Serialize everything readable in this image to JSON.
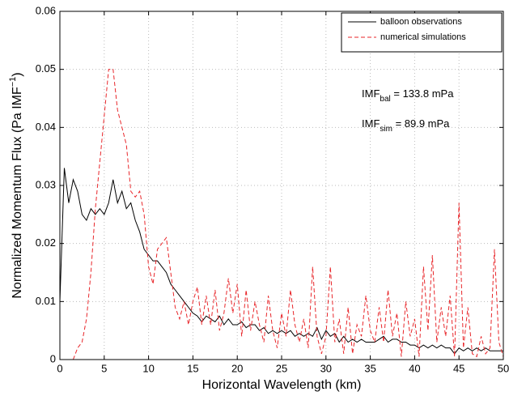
{
  "chart_data": {
    "type": "line",
    "xlabel": "Horizontal Wavelength (km)",
    "ylabel": {
      "text": "Normalized Momentum Flux (Pa IMF",
      "superscript": "−1",
      "suffix": ")"
    },
    "annotations": [
      {
        "text": "IMF",
        "subscript": "bal",
        "suffix": " = 133.8 mPa"
      },
      {
        "text": "IMF",
        "subscript": "sim",
        "suffix": " = 89.9 mPa"
      }
    ],
    "xlim": [
      0,
      50
    ],
    "xticks": [
      0,
      5,
      10,
      15,
      20,
      25,
      30,
      35,
      40,
      45,
      50
    ],
    "ylim": [
      0,
      0.06
    ],
    "yticks": [
      0,
      0.01,
      0.02,
      0.03,
      0.04,
      0.05,
      0.06
    ],
    "grid": true,
    "legend": "upper right",
    "x": [
      0,
      0.5,
      1,
      1.5,
      2,
      2.5,
      3,
      3.5,
      4,
      4.5,
      5,
      5.5,
      6,
      6.5,
      7,
      7.5,
      8,
      8.5,
      9,
      9.5,
      10,
      10.5,
      11,
      11.5,
      12,
      12.5,
      13,
      13.5,
      14,
      14.5,
      15,
      15.5,
      16,
      16.5,
      17,
      17.5,
      18,
      18.5,
      19,
      19.5,
      20,
      20.5,
      21,
      21.5,
      22,
      22.5,
      23,
      23.5,
      24,
      24.5,
      25,
      25.5,
      26,
      26.5,
      27,
      27.5,
      28,
      28.5,
      29,
      29.5,
      30,
      30.5,
      31,
      31.5,
      32,
      32.5,
      33,
      33.5,
      34,
      34.5,
      35,
      35.5,
      36,
      36.5,
      37,
      37.5,
      38,
      38.5,
      39,
      39.5,
      40,
      40.5,
      41,
      41.5,
      42,
      42.5,
      43,
      43.5,
      44,
      44.5,
      45,
      45.5,
      46,
      46.5,
      47,
      47.5,
      48,
      48.5,
      49,
      49.5,
      50
    ],
    "series": [
      {
        "name": "balloon observations",
        "color": "#000000",
        "dash": false,
        "values": [
          0.01,
          0.033,
          0.027,
          0.031,
          0.029,
          0.025,
          0.024,
          0.026,
          0.025,
          0.026,
          0.025,
          0.027,
          0.031,
          0.027,
          0.029,
          0.026,
          0.027,
          0.024,
          0.022,
          0.019,
          0.018,
          0.017,
          0.017,
          0.016,
          0.015,
          0.013,
          0.012,
          0.011,
          0.01,
          0.009,
          0.008,
          0.0075,
          0.0065,
          0.0075,
          0.007,
          0.0065,
          0.0075,
          0.006,
          0.007,
          0.006,
          0.006,
          0.0065,
          0.0055,
          0.006,
          0.006,
          0.005,
          0.0055,
          0.0045,
          0.005,
          0.0045,
          0.005,
          0.0045,
          0.005,
          0.004,
          0.0045,
          0.004,
          0.0045,
          0.004,
          0.0055,
          0.0035,
          0.005,
          0.004,
          0.0045,
          0.003,
          0.004,
          0.003,
          0.0035,
          0.003,
          0.0035,
          0.003,
          0.003,
          0.003,
          0.0035,
          0.004,
          0.003,
          0.0035,
          0.0035,
          0.003,
          0.003,
          0.0025,
          0.0025,
          0.002,
          0.0025,
          0.002,
          0.0025,
          0.002,
          0.0025,
          0.002,
          0.002,
          0.001,
          0.002,
          0.0015,
          0.002,
          0.0015,
          0.002,
          0.0015,
          0.002,
          0.0015,
          0.0015,
          0.0015,
          0.0015
        ]
      },
      {
        "name": "numerical simulations",
        "color": "#e8262a",
        "dash": true,
        "values": [
          null,
          null,
          null,
          0,
          0.002,
          0.003,
          0.007,
          0.015,
          0.026,
          0.034,
          0.042,
          0.05,
          0.05,
          0.043,
          0.04,
          0.037,
          0.029,
          0.028,
          0.029,
          0.025,
          0.016,
          0.013,
          0.019,
          0.02,
          0.021,
          0.015,
          0.009,
          0.007,
          0.01,
          0.006,
          0.01,
          0.0125,
          0.006,
          0.011,
          0.006,
          0.012,
          0.005,
          0.008,
          0.014,
          0.008,
          0.013,
          0.004,
          0.012,
          0.005,
          0.01,
          0.006,
          0.003,
          0.011,
          0.005,
          0.002,
          0.008,
          0.004,
          0.012,
          0.006,
          0.003,
          0.007,
          0.002,
          0.016,
          0.004,
          0.001,
          0.004,
          0.016,
          0.003,
          0.007,
          0.001,
          0.009,
          0.001,
          0.006,
          0.004,
          0.011,
          0.005,
          0.003,
          0.009,
          0.003,
          0.012,
          0.004,
          0.008,
          0.0005,
          0.01,
          0.004,
          0.007,
          0.0005,
          0.016,
          0.005,
          0.018,
          0.003,
          0.009,
          0.004,
          0.011,
          0.0005,
          0.027,
          0.002,
          0.009,
          0.001,
          0.0005,
          0.004,
          0.001,
          0.002,
          0.019,
          0.003,
          0.0005
        ]
      }
    ]
  }
}
